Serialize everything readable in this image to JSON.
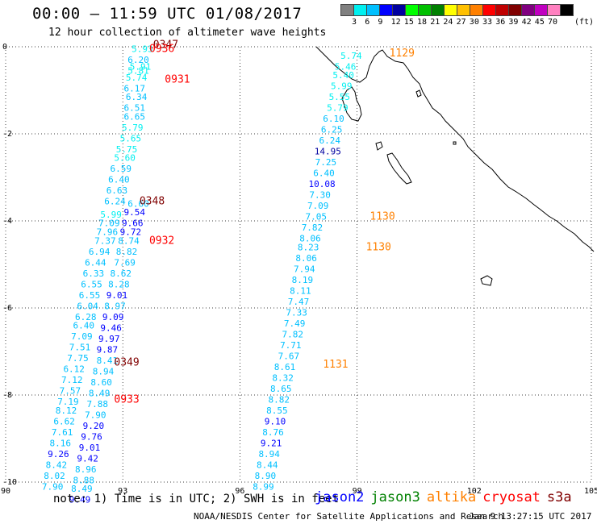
{
  "title": "00:00 – 11:59 UTC 01/08/2017",
  "subtitle": "12 hour collection of altimeter wave heights",
  "colorbar": {
    "colors": [
      "#808080",
      "#00f0f0",
      "#00c0ff",
      "#0000ff",
      "#0000a0",
      "#00ff00",
      "#00c000",
      "#008000",
      "#ffff00",
      "#ffc000",
      "#ff8000",
      "#ff0000",
      "#c00000",
      "#800000",
      "#800080",
      "#c000c0",
      "#ff80c0",
      "#000000"
    ],
    "labels": [
      "3",
      "6",
      "9",
      "12",
      "15",
      "18",
      "21",
      "24",
      "27",
      "30",
      "33",
      "36",
      "39",
      "42",
      "45",
      "70"
    ],
    "unit": "(ft)"
  },
  "axes": {
    "x_ticks": [
      "90",
      "93",
      "96",
      "99",
      "102",
      "105"
    ],
    "y_ticks": [
      "0",
      "-2",
      "-4",
      "-6",
      "-8",
      "-10"
    ],
    "lon_range": [
      90,
      105
    ],
    "lat_range": [
      0,
      -10
    ]
  },
  "tracks": [
    {
      "name": "track-a",
      "points": [
        {
          "lon": 93.5,
          "lat": -0.05,
          "v": "5.93"
        },
        {
          "lon": 93.4,
          "lat": -0.3,
          "v": "6.20"
        },
        {
          "lon": 93.45,
          "lat": -0.45,
          "v": "5.91"
        },
        {
          "lon": 93.4,
          "lat": -0.55,
          "v": "5.81"
        },
        {
          "lon": 93.35,
          "lat": -0.7,
          "v": "5.74"
        },
        {
          "lon": 93.3,
          "lat": -0.95,
          "v": "6.17"
        },
        {
          "lon": 93.35,
          "lat": -1.15,
          "v": "6.34"
        },
        {
          "lon": 93.3,
          "lat": -1.4,
          "v": "6.51"
        },
        {
          "lon": 93.3,
          "lat": -1.6,
          "v": "6.65"
        },
        {
          "lon": 93.25,
          "lat": -1.85,
          "v": "5.79"
        },
        {
          "lon": 93.2,
          "lat": -2.1,
          "v": "5.65"
        },
        {
          "lon": 93.1,
          "lat": -2.35,
          "v": "5.75"
        },
        {
          "lon": 93.05,
          "lat": -2.55,
          "v": "5.60"
        },
        {
          "lon": 92.95,
          "lat": -2.8,
          "v": "6.59"
        },
        {
          "lon": 92.9,
          "lat": -3.05,
          "v": "6.40"
        },
        {
          "lon": 92.85,
          "lat": -3.3,
          "v": "6.63"
        },
        {
          "lon": 92.8,
          "lat": -3.55,
          "v": "6.24"
        },
        {
          "lon": 92.7,
          "lat": -3.85,
          "v": "5.99"
        },
        {
          "lon": 92.65,
          "lat": -4.05,
          "v": "7.09"
        },
        {
          "lon": 92.6,
          "lat": -4.25,
          "v": "7.96"
        },
        {
          "lon": 92.55,
          "lat": -4.45,
          "v": "7.37"
        },
        {
          "lon": 92.4,
          "lat": -4.7,
          "v": "6.94"
        },
        {
          "lon": 92.3,
          "lat": -4.95,
          "v": "6.44"
        },
        {
          "lon": 92.25,
          "lat": -5.2,
          "v": "6.33"
        },
        {
          "lon": 92.2,
          "lat": -5.45,
          "v": "6.55"
        },
        {
          "lon": 92.15,
          "lat": -5.7,
          "v": "6.55"
        },
        {
          "lon": 92.1,
          "lat": -5.95,
          "v": "6.04"
        },
        {
          "lon": 92.05,
          "lat": -6.2,
          "v": "6.28"
        },
        {
          "lon": 92.0,
          "lat": -6.4,
          "v": "6.40"
        },
        {
          "lon": 91.95,
          "lat": -6.65,
          "v": "7.09"
        },
        {
          "lon": 91.9,
          "lat": -6.9,
          "v": "7.51"
        },
        {
          "lon": 91.85,
          "lat": -7.15,
          "v": "7.75"
        },
        {
          "lon": 91.75,
          "lat": -7.4,
          "v": "6.12"
        },
        {
          "lon": 91.7,
          "lat": -7.65,
          "v": "7.12"
        },
        {
          "lon": 91.65,
          "lat": -7.9,
          "v": "7.57"
        },
        {
          "lon": 91.6,
          "lat": -8.15,
          "v": "7.19"
        },
        {
          "lon": 91.55,
          "lat": -8.35,
          "v": "8.12"
        },
        {
          "lon": 91.5,
          "lat": -8.6,
          "v": "6.62"
        },
        {
          "lon": 91.45,
          "lat": -8.85,
          "v": "7.61"
        },
        {
          "lon": 91.4,
          "lat": -9.1,
          "v": "8.16"
        },
        {
          "lon": 91.35,
          "lat": -9.35,
          "v": "9.26"
        },
        {
          "lon": 91.3,
          "lat": -9.6,
          "v": "8.42"
        },
        {
          "lon": 91.25,
          "lat": -9.85,
          "v": "8.02"
        },
        {
          "lon": 91.2,
          "lat": -10.1,
          "v": "7.90"
        }
      ]
    },
    {
      "name": "track-b",
      "points": [
        {
          "lon": 93.4,
          "lat": -3.6,
          "v": "6.60"
        },
        {
          "lon": 93.3,
          "lat": -3.8,
          "v": "9.54"
        },
        {
          "lon": 93.25,
          "lat": -4.05,
          "v": "9.66"
        },
        {
          "lon": 93.2,
          "lat": -4.25,
          "v": "9.72"
        },
        {
          "lon": 93.15,
          "lat": -4.45,
          "v": "8.74"
        },
        {
          "lon": 93.1,
          "lat": -4.7,
          "v": "8.82"
        },
        {
          "lon": 93.05,
          "lat": -4.95,
          "v": "7.69"
        },
        {
          "lon": 92.95,
          "lat": -5.2,
          "v": "8.62"
        },
        {
          "lon": 92.9,
          "lat": -5.45,
          "v": "8.28"
        },
        {
          "lon": 92.85,
          "lat": -5.7,
          "v": "9.01"
        },
        {
          "lon": 92.8,
          "lat": -5.95,
          "v": "8.97"
        },
        {
          "lon": 92.75,
          "lat": -6.2,
          "v": "9.09"
        },
        {
          "lon": 92.7,
          "lat": -6.45,
          "v": "9.46"
        },
        {
          "lon": 92.65,
          "lat": -6.7,
          "v": "9.97"
        },
        {
          "lon": 92.6,
          "lat": -6.95,
          "v": "9.87"
        },
        {
          "lon": 92.6,
          "lat": -7.2,
          "v": "8.41"
        },
        {
          "lon": 92.5,
          "lat": -7.45,
          "v": "8.94"
        },
        {
          "lon": 92.45,
          "lat": -7.7,
          "v": "8.60"
        },
        {
          "lon": 92.4,
          "lat": -7.95,
          "v": "8.49"
        },
        {
          "lon": 92.35,
          "lat": -8.2,
          "v": "7.88"
        },
        {
          "lon": 92.3,
          "lat": -8.45,
          "v": "7.90"
        },
        {
          "lon": 92.25,
          "lat": -8.7,
          "v": "9.20"
        },
        {
          "lon": 92.2,
          "lat": -8.95,
          "v": "9.76"
        },
        {
          "lon": 92.15,
          "lat": -9.2,
          "v": "9.01"
        },
        {
          "lon": 92.1,
          "lat": -9.45,
          "v": "9.42"
        },
        {
          "lon": 92.05,
          "lat": -9.7,
          "v": "8.96"
        },
        {
          "lon": 92.0,
          "lat": -9.95,
          "v": "8.88"
        },
        {
          "lon": 91.95,
          "lat": -10.15,
          "v": "8.49"
        },
        {
          "lon": 91.9,
          "lat": -10.4,
          "v": "9.49"
        }
      ]
    },
    {
      "name": "track-c",
      "points": [
        {
          "lon": 98.85,
          "lat": -0.2,
          "v": "5.74"
        },
        {
          "lon": 98.7,
          "lat": -0.45,
          "v": "5.46"
        },
        {
          "lon": 98.65,
          "lat": -0.65,
          "v": "5.40"
        },
        {
          "lon": 98.6,
          "lat": -0.9,
          "v": "5.99"
        },
        {
          "lon": 98.55,
          "lat": -1.15,
          "v": "5.55"
        },
        {
          "lon": 98.5,
          "lat": -1.4,
          "v": "5.79"
        },
        {
          "lon": 98.4,
          "lat": -1.65,
          "v": "6.10"
        },
        {
          "lon": 98.35,
          "lat": -1.9,
          "v": "6.25"
        },
        {
          "lon": 98.3,
          "lat": -2.15,
          "v": "6.24"
        },
        {
          "lon": 98.25,
          "lat": -2.4,
          "v": "14.95"
        },
        {
          "lon": 98.2,
          "lat": -2.65,
          "v": "7.25"
        },
        {
          "lon": 98.15,
          "lat": -2.9,
          "v": "6.40"
        },
        {
          "lon": 98.1,
          "lat": -3.15,
          "v": "10.08"
        },
        {
          "lon": 98.05,
          "lat": -3.4,
          "v": "7.30"
        },
        {
          "lon": 98.0,
          "lat": -3.65,
          "v": "7.09"
        },
        {
          "lon": 97.95,
          "lat": -3.9,
          "v": "7.05"
        },
        {
          "lon": 97.85,
          "lat": -4.15,
          "v": "7.82"
        },
        {
          "lon": 97.8,
          "lat": -4.4,
          "v": "8.06"
        },
        {
          "lon": 97.75,
          "lat": -4.6,
          "v": "8.23"
        },
        {
          "lon": 97.7,
          "lat": -4.85,
          "v": "8.06"
        },
        {
          "lon": 97.65,
          "lat": -5.1,
          "v": "7.94"
        },
        {
          "lon": 97.6,
          "lat": -5.35,
          "v": "8.19"
        },
        {
          "lon": 97.55,
          "lat": -5.6,
          "v": "8.11"
        },
        {
          "lon": 97.5,
          "lat": -5.85,
          "v": "7.47"
        },
        {
          "lon": 97.45,
          "lat": -6.1,
          "v": "7.33"
        },
        {
          "lon": 97.4,
          "lat": -6.35,
          "v": "7.49"
        },
        {
          "lon": 97.35,
          "lat": -6.6,
          "v": "7.82"
        },
        {
          "lon": 97.3,
          "lat": -6.85,
          "v": "7.71"
        },
        {
          "lon": 97.25,
          "lat": -7.1,
          "v": "7.67"
        },
        {
          "lon": 97.15,
          "lat": -7.35,
          "v": "8.61"
        },
        {
          "lon": 97.1,
          "lat": -7.6,
          "v": "8.32"
        },
        {
          "lon": 97.05,
          "lat": -7.85,
          "v": "8.65"
        },
        {
          "lon": 97.0,
          "lat": -8.1,
          "v": "8.82"
        },
        {
          "lon": 96.95,
          "lat": -8.35,
          "v": "8.55"
        },
        {
          "lon": 96.9,
          "lat": -8.6,
          "v": "9.10"
        },
        {
          "lon": 96.85,
          "lat": -8.85,
          "v": "8.76"
        },
        {
          "lon": 96.8,
          "lat": -9.1,
          "v": "9.21"
        },
        {
          "lon": 96.75,
          "lat": -9.35,
          "v": "8.94"
        },
        {
          "lon": 96.7,
          "lat": -9.6,
          "v": "8.44"
        },
        {
          "lon": 96.65,
          "lat": -9.85,
          "v": "8.90"
        },
        {
          "lon": 96.6,
          "lat": -10.1,
          "v": "8.99"
        }
      ]
    }
  ],
  "time_labels": [
    {
      "lon": 94.1,
      "lat": 0.05,
      "v": "0347",
      "color": "#800000"
    },
    {
      "lon": 94.0,
      "lat": -0.05,
      "v": "0936",
      "color": "#ff0000"
    },
    {
      "lon": 94.4,
      "lat": -0.75,
      "v": "0931",
      "color": "#ff0000"
    },
    {
      "lon": 93.75,
      "lat": -3.55,
      "v": "0348",
      "color": "#800000"
    },
    {
      "lon": 94.0,
      "lat": -4.45,
      "v": "0932",
      "color": "#ff0000"
    },
    {
      "lon": 93.1,
      "lat": -7.25,
      "v": "0349",
      "color": "#800000"
    },
    {
      "lon": 93.1,
      "lat": -8.1,
      "v": "0933",
      "color": "#ff0000"
    },
    {
      "lon": 100.15,
      "lat": -0.15,
      "v": "1129",
      "color": "#ff8000"
    },
    {
      "lon": 99.65,
      "lat": -3.9,
      "v": "1130",
      "color": "#ff8000"
    },
    {
      "lon": 99.55,
      "lat": -4.6,
      "v": "1130",
      "color": "#ff8000"
    },
    {
      "lon": 98.45,
      "lat": -7.3,
      "v": "1131",
      "color": "#ff8000"
    }
  ],
  "note": "note: 1) Time is in UTC; 2) SWH is in feet",
  "satellites": [
    {
      "name": "jason2",
      "color": "#0000ff"
    },
    {
      "name": "jason3",
      "color": "#008000"
    },
    {
      "name": "altika",
      "color": "#ff8000"
    },
    {
      "name": "cryosat",
      "color": "#ff0000"
    },
    {
      "name": "s3a",
      "color": "#800000"
    }
  ],
  "credit": "NOAA/NESDIS Center for Satellite Applications and Research",
  "timestamp": "Jan  9 13:27:15 UTC 2017"
}
